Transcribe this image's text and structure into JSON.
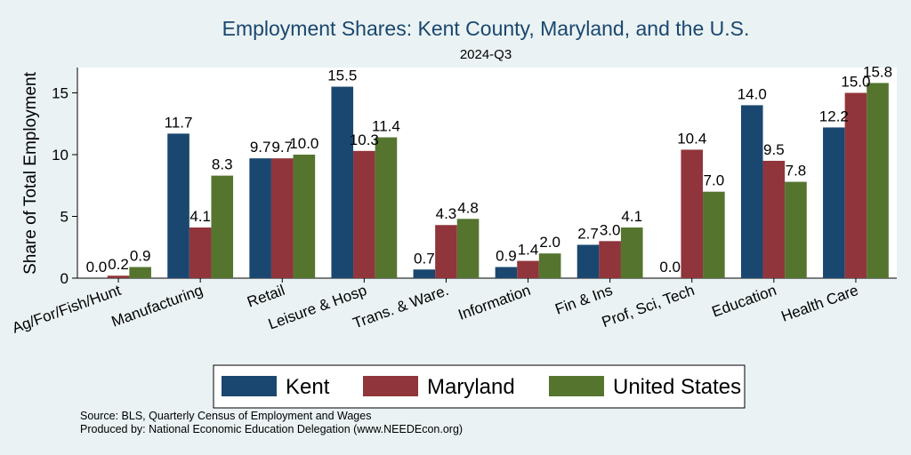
{
  "chart_data": {
    "type": "bar",
    "title": "Employment Shares: Kent County, Maryland, and the U.S.",
    "subtitle": "2024-Q3",
    "xlabel": "",
    "ylabel": "Share of Total Employment",
    "ylim": [
      0,
      17
    ],
    "yticks": [
      0,
      5,
      10,
      15
    ],
    "categories": [
      "Ag/For/Fish/Hunt",
      "Manufacturing",
      "Retail",
      "Leisure & Hosp",
      "Trans. & Ware.",
      "Information",
      "Fin & Ins",
      "Prof, Sci, Tech",
      "Education",
      "Health Care"
    ],
    "series": [
      {
        "name": "Kent",
        "color": "#1a476f",
        "values": [
          0.0,
          11.7,
          9.7,
          15.5,
          0.7,
          0.9,
          2.7,
          0.0,
          14.0,
          12.2
        ]
      },
      {
        "name": "Maryland",
        "color": "#90353b",
        "values": [
          0.2,
          4.1,
          9.7,
          10.3,
          4.3,
          1.4,
          3.0,
          10.4,
          9.5,
          15.0
        ]
      },
      {
        "name": "United States",
        "color": "#55752f",
        "values": [
          0.9,
          8.3,
          10.0,
          11.4,
          4.8,
          2.0,
          4.1,
          7.0,
          7.8,
          15.8
        ]
      }
    ],
    "legend_position": "bottom",
    "grid": false
  },
  "notes": {
    "source": "Source: BLS, Quarterly Census of Employment and Wages",
    "produced": "Produced by: National Economic Education Delegation (www.NEEDEcon.org)"
  },
  "colors": {
    "background": "#eaf2f3",
    "title": "#1a476f"
  }
}
